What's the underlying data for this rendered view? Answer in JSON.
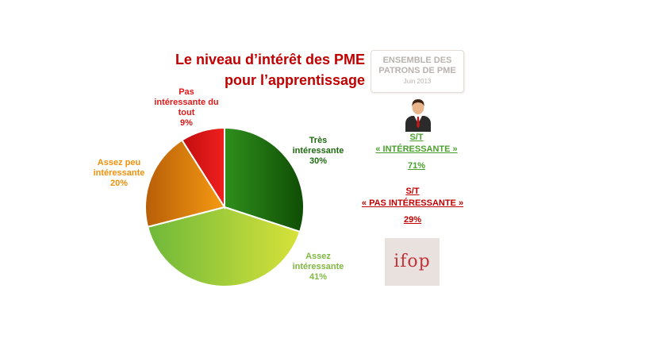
{
  "title": {
    "line1": "Le niveau d’intérêt des PME",
    "line2": "pour l’apprentissage"
  },
  "badge": {
    "line1": "ENSEMBLE DES",
    "line2": "PATRONS DE PME",
    "line3": "Juin 2013"
  },
  "chart_data": {
    "type": "pie",
    "slices": [
      {
        "label_lines": [
          "Très",
          "intéressante"
        ],
        "value_text": "30%",
        "value": 30,
        "color": "#1e7a10"
      },
      {
        "label_lines": [
          "Assez",
          "intéressante"
        ],
        "value_text": "41%",
        "value": 41,
        "color": "#a9cc30"
      },
      {
        "label_lines": [
          "Assez peu",
          "intéressante"
        ],
        "value_text": "20%",
        "value": 20,
        "color": "#e8850a"
      },
      {
        "label_lines": [
          "Pas",
          "intéressante du",
          "tout"
        ],
        "value_text": "9%",
        "value": 9,
        "color": "#e01818"
      }
    ]
  },
  "summary": {
    "interested": {
      "line1": "S/T",
      "line2": "« INTÉRESSANTE »",
      "value": "71%",
      "color": "#4aa02c"
    },
    "not_interested": {
      "line1": "S/T",
      "line2": "« PAS INTÉRESSANTE »",
      "value": "29%",
      "color": "#c00000"
    }
  },
  "logo": {
    "text": "ifop"
  }
}
